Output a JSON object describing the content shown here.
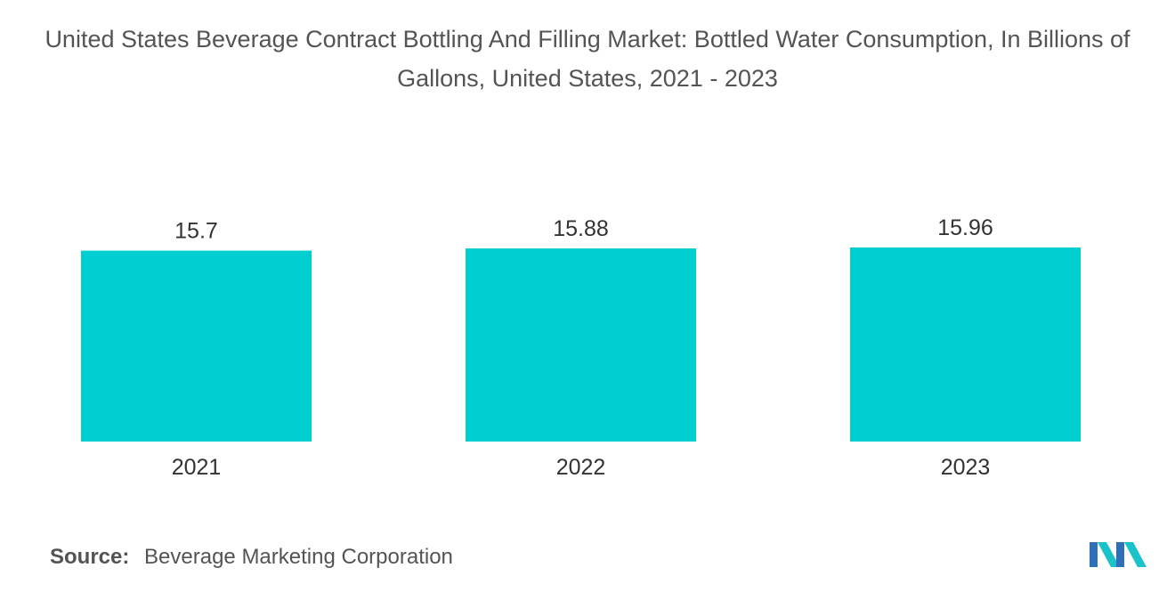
{
  "chart_data": {
    "type": "bar",
    "title": "United States Beverage Contract Bottling And Filling Market: Bottled Water Consumption, In Billions of Gallons, United States, 2021 - 2023",
    "categories": [
      "2021",
      "2022",
      "2023"
    ],
    "values": [
      15.7,
      15.88,
      15.96
    ],
    "value_labels": [
      "15.7",
      "15.88",
      "15.96"
    ],
    "xlabel": "",
    "ylabel": "",
    "ylim": [
      0,
      18
    ],
    "grid": false,
    "legend": "none",
    "bar_color": "#00CED1"
  },
  "source": {
    "label": "Source:",
    "text": "Beverage Marketing Corporation"
  },
  "logo": {
    "icon": "mordor-intelligence-logo-icon",
    "colors": [
      "#2E6FB7",
      "#19C3C9"
    ]
  }
}
